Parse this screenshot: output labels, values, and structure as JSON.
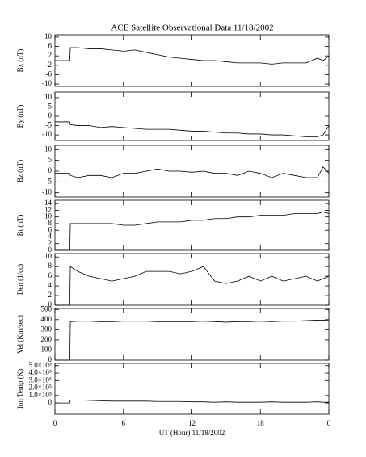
{
  "chart_data": [
    {
      "type": "line",
      "title": "ACE Satellite Observational Data   11/18/2002",
      "ylabel": "Bx (nT)",
      "x": [
        0,
        1.3,
        1.35,
        2,
        3,
        4,
        5,
        6,
        7,
        8,
        9,
        10,
        11,
        12,
        13,
        14,
        15,
        16,
        17,
        18,
        19,
        20,
        21,
        22,
        23,
        23.5,
        24
      ],
      "values": [
        0,
        0,
        5.5,
        5.5,
        5,
        5,
        4.5,
        4,
        4.5,
        3.5,
        2.5,
        1.5,
        1,
        0.5,
        0,
        0,
        -0.5,
        -1,
        -1,
        -1,
        -1.5,
        -1,
        -1,
        -1,
        1,
        0,
        2
      ],
      "xlim": [
        0,
        24
      ],
      "ylim": [
        -11,
        11
      ],
      "yticks": [
        -10,
        -6,
        -2,
        2,
        6,
        10
      ],
      "color": "#000000"
    },
    {
      "type": "line",
      "ylabel": "By (nT)",
      "x": [
        0,
        1.3,
        1.35,
        2,
        3,
        4,
        5,
        6,
        7,
        8,
        9,
        10,
        11,
        12,
        13,
        14,
        15,
        16,
        17,
        18,
        19,
        20,
        21,
        22,
        23,
        23.5,
        24
      ],
      "values": [
        -3,
        -3,
        -4.5,
        -5,
        -5,
        -6,
        -5.5,
        -6,
        -6.5,
        -7,
        -7,
        -7,
        -7.5,
        -8,
        -8,
        -8.5,
        -9,
        -9,
        -9.5,
        -9.5,
        -10,
        -10,
        -10.5,
        -11,
        -11,
        -10,
        -5
      ],
      "xlim": [
        0,
        24
      ],
      "ylim": [
        -13,
        13
      ],
      "yticks": [
        -10,
        -5,
        0,
        5,
        10
      ],
      "color": "#000000"
    },
    {
      "type": "line",
      "ylabel": "Bz (nT)",
      "x": [
        0,
        1.3,
        1.35,
        2,
        3,
        4,
        5,
        6,
        7,
        8,
        9,
        10,
        11,
        12,
        13,
        14,
        15,
        16,
        17,
        18,
        19,
        20,
        21,
        22,
        23,
        23.5,
        24
      ],
      "values": [
        -1,
        -1,
        -2,
        -3,
        -2,
        -2,
        -3,
        -1,
        -1,
        0,
        1,
        0,
        0,
        -0.5,
        0,
        -1,
        -1,
        -2,
        0,
        -1,
        -3,
        -1,
        -2,
        -3,
        -3,
        2,
        -1
      ],
      "xlim": [
        0,
        24
      ],
      "ylim": [
        -12,
        12
      ],
      "yticks": [
        -10,
        -5,
        0,
        5,
        10
      ],
      "color": "#000000"
    },
    {
      "type": "line",
      "ylabel": "Bt (nT)",
      "x": [
        0,
        1.3,
        1.35,
        2,
        3,
        4,
        5,
        6,
        7,
        8,
        9,
        10,
        11,
        12,
        13,
        14,
        15,
        16,
        17,
        18,
        19,
        20,
        21,
        22,
        23,
        23.5,
        24
      ],
      "values": [
        0,
        0,
        8,
        8,
        8,
        8,
        8,
        7.5,
        7.5,
        8,
        8.5,
        8.5,
        8.5,
        9,
        9,
        9.5,
        9.5,
        10,
        10,
        10.5,
        10.5,
        10.5,
        11,
        11,
        11,
        11.5,
        11
      ],
      "xlim": [
        0,
        24
      ],
      "ylim": [
        0,
        15
      ],
      "yticks": [
        0,
        2,
        4,
        6,
        8,
        10,
        12,
        14
      ],
      "color": "#000000"
    },
    {
      "type": "line",
      "ylabel": "Den (1/cc)",
      "x": [
        0,
        1.3,
        1.35,
        2,
        3,
        4,
        5,
        6,
        7,
        8,
        9,
        10,
        11,
        12,
        13,
        14,
        15,
        16,
        17,
        18,
        19,
        20,
        21,
        22,
        23,
        23.5,
        24
      ],
      "values": [
        0,
        0,
        8,
        7,
        6,
        5.5,
        5,
        5.5,
        6,
        7,
        7,
        7,
        6.5,
        7,
        8,
        5,
        4.5,
        5,
        6,
        5,
        6,
        5,
        5.5,
        6,
        5,
        5.5,
        6
      ],
      "xlim": [
        0,
        24
      ],
      "ylim": [
        0,
        10.7
      ],
      "yticks": [
        0,
        2,
        4,
        6,
        8,
        10
      ],
      "color": "#000000"
    },
    {
      "type": "line",
      "ylabel": "Vel (Km/sec)",
      "x": [
        0,
        1.3,
        1.35,
        2,
        3,
        4,
        5,
        6,
        7,
        8,
        9,
        10,
        11,
        12,
        13,
        14,
        15,
        16,
        17,
        18,
        19,
        20,
        21,
        22,
        23,
        23.5,
        24
      ],
      "values": [
        0,
        0,
        380,
        385,
        385,
        380,
        380,
        385,
        385,
        385,
        380,
        380,
        380,
        380,
        385,
        380,
        375,
        380,
        380,
        385,
        380,
        385,
        385,
        390,
        395,
        395,
        390
      ],
      "xlim": [
        0,
        24
      ],
      "ylim": [
        0,
        510
      ],
      "yticks": [
        0,
        100,
        200,
        300,
        400,
        500
      ],
      "color": "#000000"
    },
    {
      "type": "line",
      "ylabel": "Ion Temp (K)",
      "xlabel": "UT (Hour)  11/18/2002",
      "x": [
        0,
        1.3,
        1.35,
        2,
        3,
        4,
        5,
        6,
        7,
        8,
        9,
        10,
        11,
        12,
        13,
        14,
        15,
        16,
        17,
        18,
        19,
        20,
        21,
        22,
        23,
        23.5,
        24
      ],
      "values": [
        0,
        0,
        40000,
        40000,
        35000,
        30000,
        25000,
        25000,
        25000,
        25000,
        20000,
        20000,
        20000,
        15000,
        15000,
        10000,
        15000,
        10000,
        10000,
        10000,
        15000,
        10000,
        10000,
        10000,
        15000,
        10000,
        10000
      ],
      "xlim": [
        0,
        24
      ],
      "ylim": [
        -150000,
        530000
      ],
      "yticks": [
        0,
        {
          "value": 100000,
          "label": "1.0×10⁵"
        },
        {
          "value": 200000,
          "label": "2.0×10⁵"
        },
        {
          "value": 300000,
          "label": "3.0×10⁵"
        },
        {
          "value": 400000,
          "label": "4.0×10⁵"
        },
        {
          "value": 500000,
          "label": "5.0×10⁵"
        }
      ],
      "xticks": [
        0,
        6,
        12,
        18,
        {
          "value": 24,
          "label": "0"
        }
      ],
      "color": "#000000"
    }
  ]
}
